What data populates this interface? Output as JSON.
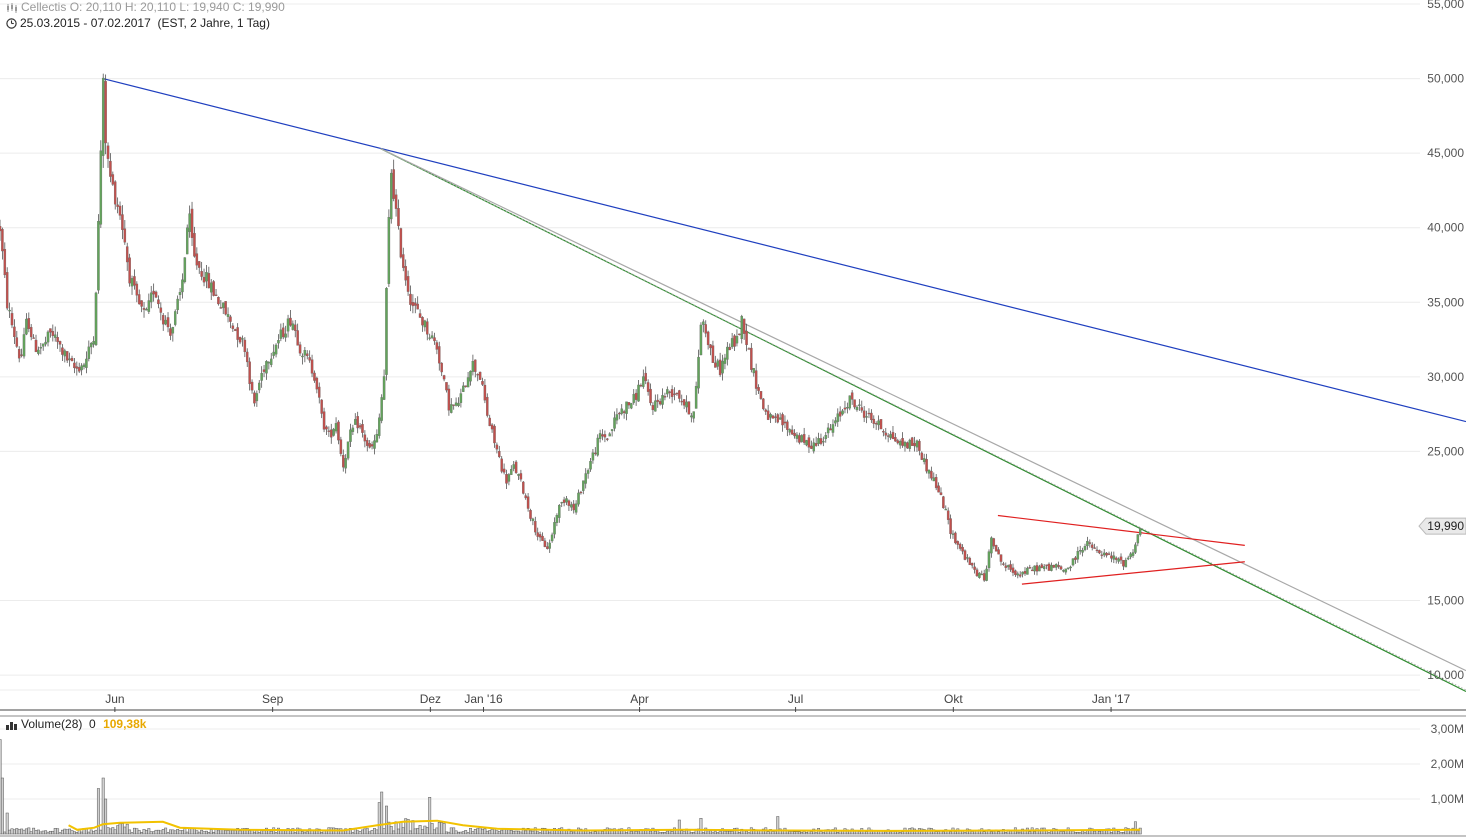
{
  "header": {
    "title": "Cellectis",
    "ohlc": "O: 20,110  H: 20,110  L: 19,940  C: 19,990",
    "range": "25.03.2015 - 07.02.2017",
    "range_detail": "(EST, 2 Jahre, 1 Tag)"
  },
  "volume_header": {
    "label": "Volume(28)",
    "value0": "0",
    "value1": "109,38k"
  },
  "colors": {
    "up": "#63a35c",
    "down": "#c0504d",
    "trend_blue": "#1f3fbf",
    "trend_green": "#2e8b2e",
    "trend_gray": "#a8a8a8",
    "triangle_red": "#e02020",
    "volume_ma": "#f2c200",
    "grid": "#ececec"
  },
  "chart_data": [
    {
      "type": "candlestick",
      "name": "price",
      "y_ticks": [
        {
          "v": 55,
          "label": "55,000"
        },
        {
          "v": 50,
          "label": "50,000"
        },
        {
          "v": 45,
          "label": "45,000"
        },
        {
          "v": 40,
          "label": "40,000"
        },
        {
          "v": 35,
          "label": "35,000"
        },
        {
          "v": 30,
          "label": "30,000"
        },
        {
          "v": 25,
          "label": "25,000"
        },
        {
          "v": 15,
          "label": "15,000"
        },
        {
          "v": 10,
          "label": "10,000"
        }
      ],
      "ylim": [
        9.0,
        55.0
      ],
      "x_ticks": [
        {
          "d": 67,
          "label": "Jun"
        },
        {
          "d": 159,
          "label": "Sep"
        },
        {
          "d": 251,
          "label": "Dez"
        },
        {
          "d": 282,
          "label": "Jan '16"
        },
        {
          "d": 373,
          "label": "Apr"
        },
        {
          "d": 464,
          "label": "Jul"
        },
        {
          "d": 556,
          "label": "Okt"
        },
        {
          "d": 648,
          "label": "Jan '17"
        }
      ],
      "xlim": [
        0,
        855
      ],
      "last_price": {
        "v": 19.99,
        "label": "19,990"
      },
      "keypoints": [
        [
          0,
          40
        ],
        [
          4,
          35
        ],
        [
          8,
          33
        ],
        [
          12,
          31
        ],
        [
          16,
          34
        ],
        [
          20,
          32
        ],
        [
          25,
          32
        ],
        [
          30,
          33
        ],
        [
          35,
          32
        ],
        [
          40,
          31
        ],
        [
          44,
          30.5
        ],
        [
          50,
          31
        ],
        [
          55,
          33
        ],
        [
          58,
          42
        ],
        [
          60,
          50
        ],
        [
          62,
          45
        ],
        [
          65,
          43
        ],
        [
          70,
          41
        ],
        [
          73,
          39
        ],
        [
          75,
          37
        ],
        [
          80,
          35
        ],
        [
          85,
          34
        ],
        [
          90,
          36
        ],
        [
          95,
          34
        ],
        [
          100,
          33
        ],
        [
          106,
          36
        ],
        [
          110,
          41
        ],
        [
          113,
          38
        ],
        [
          118,
          37
        ],
        [
          123,
          36
        ],
        [
          128,
          35
        ],
        [
          133,
          34
        ],
        [
          138,
          33
        ],
        [
          143,
          32
        ],
        [
          148,
          28
        ],
        [
          152,
          30
        ],
        [
          155,
          31
        ],
        [
          160,
          32
        ],
        [
          165,
          33
        ],
        [
          170,
          34
        ],
        [
          175,
          32
        ],
        [
          180,
          31
        ],
        [
          184,
          30
        ],
        [
          188,
          27
        ],
        [
          192,
          26
        ],
        [
          196,
          27
        ],
        [
          200,
          24
        ],
        [
          204,
          26
        ],
        [
          208,
          27
        ],
        [
          212,
          26
        ],
        [
          216,
          25
        ],
        [
          220,
          26
        ],
        [
          224,
          30
        ],
        [
          226,
          38
        ],
        [
          228,
          44
        ],
        [
          230,
          42
        ],
        [
          233,
          39
        ],
        [
          236,
          37
        ],
        [
          240,
          35
        ],
        [
          245,
          34
        ],
        [
          250,
          33
        ],
        [
          255,
          32
        ],
        [
          258,
          30
        ],
        [
          262,
          28
        ],
        [
          266,
          28
        ],
        [
          270,
          29
        ],
        [
          275,
          31
        ],
        [
          280,
          30
        ],
        [
          285,
          27
        ],
        [
          290,
          25
        ],
        [
          295,
          23
        ],
        [
          300,
          24
        ],
        [
          305,
          22.5
        ],
        [
          310,
          20.5
        ],
        [
          315,
          19
        ],
        [
          320,
          18.5
        ],
        [
          325,
          21
        ],
        [
          330,
          22
        ],
        [
          335,
          21
        ],
        [
          340,
          23
        ],
        [
          345,
          24.5
        ],
        [
          350,
          26
        ],
        [
          355,
          26
        ],
        [
          360,
          27.5
        ],
        [
          365,
          28
        ],
        [
          370,
          28.5
        ],
        [
          375,
          30
        ],
        [
          380,
          28
        ],
        [
          385,
          28.5
        ],
        [
          390,
          29
        ],
        [
          395,
          29
        ],
        [
          400,
          28
        ],
        [
          405,
          27.5
        ],
        [
          409,
          34
        ],
        [
          412,
          33
        ],
        [
          416,
          31
        ],
        [
          420,
          30.5
        ],
        [
          425,
          32
        ],
        [
          430,
          32.5
        ],
        [
          433,
          34
        ],
        [
          436,
          32
        ],
        [
          440,
          30
        ],
        [
          445,
          28
        ],
        [
          450,
          27
        ],
        [
          455,
          27
        ],
        [
          460,
          26.5
        ],
        [
          465,
          26
        ],
        [
          470,
          25.5
        ],
        [
          475,
          25.5
        ],
        [
          480,
          26
        ],
        [
          485,
          26.5
        ],
        [
          490,
          27.5
        ],
        [
          495,
          28.5
        ],
        [
          500,
          28
        ],
        [
          505,
          27.5
        ],
        [
          510,
          27
        ],
        [
          515,
          26.5
        ],
        [
          520,
          26
        ],
        [
          525,
          25.5
        ],
        [
          530,
          25.5
        ],
        [
          535,
          25.5
        ],
        [
          540,
          24
        ],
        [
          545,
          23
        ],
        [
          550,
          21.5
        ],
        [
          555,
          19.5
        ],
        [
          560,
          18.5
        ],
        [
          565,
          17.5
        ],
        [
          570,
          16.8
        ],
        [
          575,
          16.5
        ],
        [
          578,
          19.5
        ],
        [
          582,
          18
        ],
        [
          586,
          17.3
        ],
        [
          590,
          17
        ],
        [
          595,
          16.8
        ],
        [
          600,
          17
        ],
        [
          605,
          17.2
        ],
        [
          610,
          17.2
        ],
        [
          615,
          17.3
        ],
        [
          620,
          17
        ],
        [
          625,
          17.4
        ],
        [
          630,
          18.5
        ],
        [
          635,
          18.8
        ],
        [
          640,
          18.2
        ],
        [
          645,
          18
        ],
        [
          650,
          17.8
        ],
        [
          655,
          17.5
        ],
        [
          660,
          18.2
        ],
        [
          663,
          19
        ],
        [
          665,
          20
        ]
      ],
      "trendlines": [
        {
          "name": "blue-trendline",
          "color": "blue",
          "points": [
            [
              60,
              50.0
            ],
            [
              855,
              27.0
            ]
          ]
        },
        {
          "name": "green-trendline",
          "color": "green",
          "points": [
            [
              222,
              45.3
            ],
            [
              855,
              8.9
            ]
          ]
        },
        {
          "name": "gray-trendline",
          "color": "gray",
          "points": [
            [
              222,
              45.3
            ],
            [
              855,
              10.3
            ]
          ]
        },
        {
          "name": "dotted-trendline",
          "color": "gray",
          "dotted": true,
          "points": [
            [
              222,
              45.3
            ],
            [
              855,
              9.0
            ]
          ]
        },
        {
          "name": "triangle-top",
          "color": "red",
          "points": [
            [
              582,
              20.7
            ],
            [
              726,
              18.7
            ]
          ]
        },
        {
          "name": "triangle-bottom",
          "color": "red",
          "points": [
            [
              596,
              16.1
            ],
            [
              726,
              17.6
            ]
          ]
        }
      ]
    },
    {
      "type": "bar",
      "name": "volume",
      "y_ticks": [
        {
          "v": 3.0,
          "label": "3,00M"
        },
        {
          "v": 2.0,
          "label": "2,00M"
        },
        {
          "v": 1.0,
          "label": "1,00M"
        }
      ],
      "ylim": [
        0,
        3.2
      ],
      "spikes": [
        [
          0,
          2.7
        ],
        [
          2,
          1.6
        ],
        [
          4,
          0.6
        ],
        [
          58,
          1.3
        ],
        [
          60,
          1.6
        ],
        [
          62,
          1.0
        ],
        [
          221,
          0.9
        ],
        [
          223,
          1.2
        ],
        [
          225,
          0.8
        ],
        [
          250,
          1.05
        ],
        [
          396,
          0.4
        ],
        [
          409,
          0.45
        ],
        [
          454,
          0.5
        ],
        [
          662,
          0.35
        ]
      ],
      "ma": [
        [
          40,
          0.25
        ],
        [
          45,
          0.12
        ],
        [
          55,
          0.18
        ],
        [
          60,
          0.28
        ],
        [
          70,
          0.32
        ],
        [
          95,
          0.35
        ],
        [
          105,
          0.18
        ],
        [
          140,
          0.12
        ],
        [
          200,
          0.1
        ],
        [
          220,
          0.25
        ],
        [
          235,
          0.35
        ],
        [
          255,
          0.38
        ],
        [
          270,
          0.25
        ],
        [
          290,
          0.15
        ],
        [
          340,
          0.1
        ],
        [
          400,
          0.12
        ],
        [
          460,
          0.1
        ],
        [
          520,
          0.09
        ],
        [
          600,
          0.1
        ],
        [
          665,
          0.12
        ]
      ]
    }
  ]
}
